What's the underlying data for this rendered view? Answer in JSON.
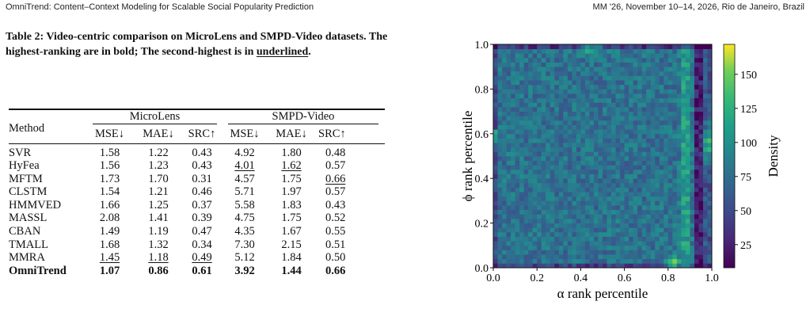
{
  "header": {
    "left": "OmniTrend: Content–Context Modeling for Scalable Social Popularity Prediction",
    "right": "MM '26, November 10–14, 2026, Rio de Janeiro, Brazil"
  },
  "caption": {
    "lead": "Table 2: Video-centric comparison on MicroLens and SMPD-Video datasets. The highest-ranking are in bold; The second-highest is in ",
    "underlined": "underlined",
    "tail": "."
  },
  "table": {
    "method_header": "Method",
    "groups": [
      "MicroLens",
      "SMPD-Video"
    ],
    "metrics": [
      "MSE↓",
      "MAE↓",
      "SRC↑",
      "MSE↓",
      "MAE↓",
      "SRC↑"
    ],
    "rows": [
      {
        "method": "SVR",
        "values": [
          "1.58",
          "1.22",
          "0.43",
          "4.92",
          "1.80",
          "0.48"
        ],
        "style": [
          "",
          "",
          "",
          "",
          "",
          ""
        ]
      },
      {
        "method": "HyFea",
        "values": [
          "1.56",
          "1.23",
          "0.43",
          "4.01",
          "1.62",
          "0.57"
        ],
        "style": [
          "",
          "",
          "",
          "u",
          "u",
          ""
        ]
      },
      {
        "method": "MFTM",
        "values": [
          "1.73",
          "1.70",
          "0.31",
          "4.57",
          "1.75",
          "0.66"
        ],
        "style": [
          "",
          "",
          "",
          "",
          "",
          "u"
        ]
      },
      {
        "method": "CLSTM",
        "values": [
          "1.54",
          "1.21",
          "0.46",
          "5.71",
          "1.97",
          "0.57"
        ],
        "style": [
          "",
          "",
          "",
          "",
          "",
          ""
        ]
      },
      {
        "method": "HMMVED",
        "values": [
          "1.66",
          "1.25",
          "0.37",
          "5.58",
          "1.83",
          "0.43"
        ],
        "style": [
          "",
          "",
          "",
          "",
          "",
          ""
        ]
      },
      {
        "method": "MASSL",
        "values": [
          "2.08",
          "1.41",
          "0.39",
          "4.75",
          "1.75",
          "0.52"
        ],
        "style": [
          "",
          "",
          "",
          "",
          "",
          ""
        ]
      },
      {
        "method": "CBAN",
        "values": [
          "1.49",
          "1.19",
          "0.47",
          "4.35",
          "1.67",
          "0.55"
        ],
        "style": [
          "",
          "",
          "",
          "",
          "",
          ""
        ]
      },
      {
        "method": "TMALL",
        "values": [
          "1.68",
          "1.32",
          "0.34",
          "7.30",
          "2.15",
          "0.51"
        ],
        "style": [
          "",
          "",
          "",
          "",
          "",
          ""
        ]
      },
      {
        "method": "MMRA",
        "values": [
          "1.45",
          "1.18",
          "0.49",
          "5.12",
          "1.84",
          "0.50"
        ],
        "style": [
          "u",
          "u",
          "u",
          "",
          "",
          ""
        ]
      },
      {
        "method": "OmniTrend",
        "values": [
          "1.07",
          "0.86",
          "0.61",
          "3.92",
          "1.44",
          "0.66"
        ],
        "style": [
          "b",
          "b",
          "b",
          "b",
          "b",
          "b"
        ]
      }
    ]
  },
  "chart_data": {
    "type": "heatmap",
    "title": "",
    "xlabel": "α rank percentile",
    "ylabel": "ϕ rank percentile",
    "xlim": [
      0.0,
      1.0
    ],
    "ylim": [
      0.0,
      1.0
    ],
    "x_ticks": [
      "0.0",
      "0.2",
      "0.4",
      "0.6",
      "0.8",
      "1.0"
    ],
    "y_ticks": [
      "0.0",
      "0.2",
      "0.4",
      "0.6",
      "0.8",
      "1.0"
    ],
    "bins": 50,
    "colorbar": {
      "label": "Density",
      "ticks": [
        "25",
        "50",
        "75",
        "100",
        "125",
        "150"
      ],
      "tick_values": [
        25,
        50,
        75,
        100,
        125,
        150
      ],
      "range": [
        8,
        172
      ],
      "colormap": "viridis"
    },
    "density_pattern": {
      "baseline": 78,
      "left_edge": 30,
      "bottom_edge": 35,
      "top_edge": 40,
      "right_edge_band": -55,
      "ridge_near_x_0_88": 40,
      "hot_right_mid": 70,
      "hot_top_mid": 60,
      "hot_bottom_right": 80
    }
  }
}
